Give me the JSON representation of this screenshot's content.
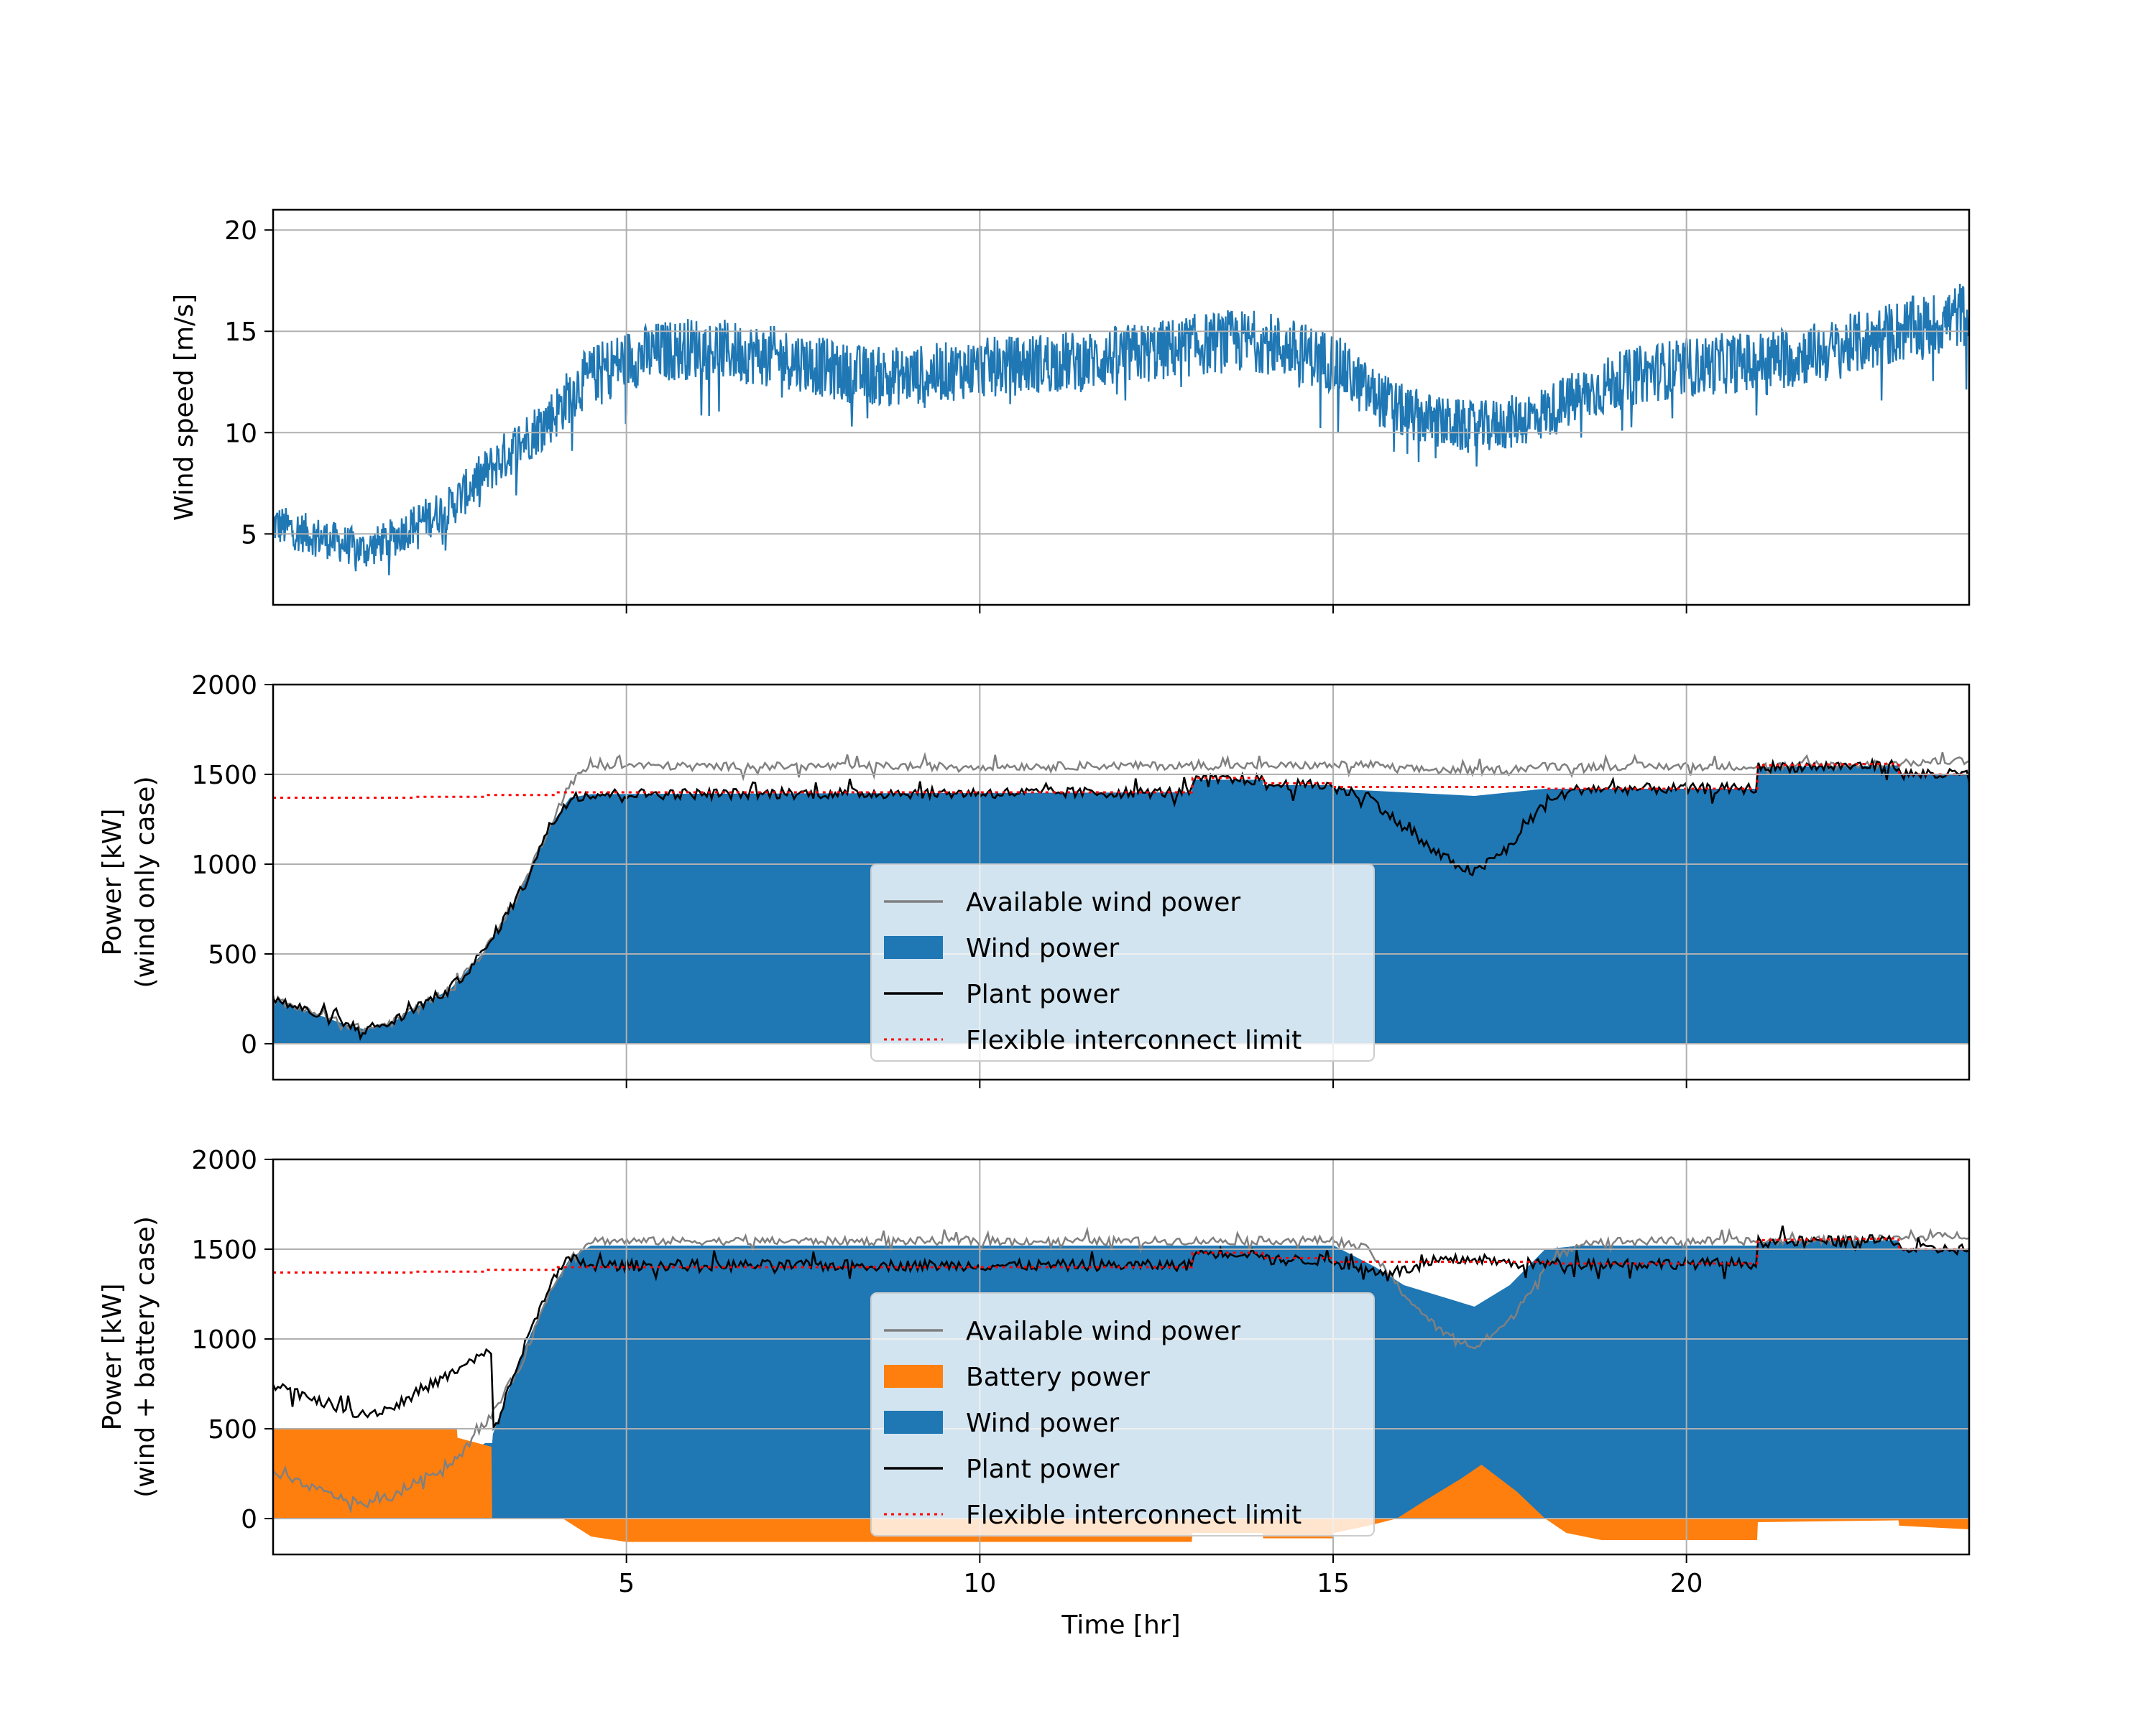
{
  "chart_data": [
    {
      "type": "line",
      "ylabel": "Wind speed [m/s]",
      "xlim": [
        0,
        24
      ],
      "ylim": [
        1.5,
        21
      ],
      "yticks": [
        5,
        10,
        15,
        20
      ],
      "xticks": [
        5,
        10,
        15,
        20
      ],
      "grid": true,
      "series": [
        {
          "role": "wind",
          "color": "#1f77b4",
          "x": [
            0,
            0.5,
            1,
            1.3,
            1.7,
            2,
            2.5,
            3,
            3.5,
            4,
            4.3,
            4.6,
            5,
            5.5,
            6,
            6.5,
            7,
            7.5,
            8,
            8.5,
            9,
            9.5,
            10,
            10.5,
            11,
            11.5,
            12,
            12.5,
            13,
            13.5,
            14,
            14.5,
            15,
            15.5,
            16,
            16.5,
            17,
            17.5,
            18,
            18.5,
            19,
            19.5,
            20,
            20.5,
            21,
            21.5,
            22,
            22.5,
            23,
            23.5,
            24
          ],
          "y": [
            5.5,
            5.0,
            4.5,
            4.2,
            4.8,
            5.5,
            6.3,
            8.0,
            9.5,
            11.0,
            12.3,
            13.0,
            13.6,
            14.0,
            14.2,
            14.0,
            13.8,
            13.5,
            13.0,
            12.8,
            12.8,
            13.0,
            13.2,
            13.3,
            13.5,
            13.5,
            13.8,
            14.0,
            14.3,
            14.5,
            14.5,
            14.0,
            13.5,
            12.0,
            11.0,
            10.5,
            10.2,
            10.5,
            11.0,
            11.8,
            12.5,
            13.0,
            13.2,
            13.4,
            13.5,
            13.8,
            14.0,
            14.5,
            15.0,
            15.3,
            16.0
          ]
        }
      ]
    },
    {
      "type": "area",
      "ylabel_lines": [
        "Power [kW]",
        "(wind only case)"
      ],
      "xlim": [
        0,
        24
      ],
      "ylim": [
        -200,
        2000
      ],
      "yticks": [
        0,
        500,
        1000,
        1500,
        2000
      ],
      "xticks": [
        5,
        10,
        15,
        20
      ],
      "grid": true,
      "legend": {
        "placement": "lower-center",
        "entries": [
          {
            "label": "Available wind power",
            "kind": "line",
            "color": "#808080"
          },
          {
            "label": "Wind power",
            "kind": "patch",
            "color": "#1f77b4"
          },
          {
            "label": "Plant power",
            "kind": "line",
            "color": "#000000"
          },
          {
            "label": "Flexible interconnect limit",
            "kind": "dotted",
            "color": "#ff0000"
          }
        ]
      },
      "series": [
        {
          "name": "Available wind power",
          "color": "#808080",
          "x": [
            0,
            0.5,
            1,
            1.3,
            1.7,
            2,
            2.5,
            3,
            3.5,
            3.9,
            4.2,
            4.5,
            5,
            6,
            8,
            10,
            12,
            14,
            15,
            15.5,
            16,
            17,
            17.5,
            18,
            19,
            20,
            21,
            22,
            23,
            24
          ],
          "y": [
            250,
            180,
            110,
            80,
            120,
            200,
            300,
            520,
            850,
            1200,
            1450,
            1550,
            1550,
            1545,
            1545,
            1545,
            1548,
            1548,
            1550,
            1555,
            1530,
            1520,
            1530,
            1545,
            1545,
            1545,
            1545,
            1550,
            1560,
            1580
          ]
        },
        {
          "name": "Wind power",
          "color": "#1f77b4",
          "x": [
            0,
            0.5,
            1,
            1.3,
            1.7,
            2,
            2.5,
            3,
            3.5,
            3.9,
            4.2,
            4.5,
            13,
            13.01,
            14,
            14.01,
            15,
            15.01,
            16,
            17,
            17.5,
            18,
            18.5,
            21,
            21.01,
            23,
            23.01,
            24
          ],
          "y": [
            250,
            180,
            110,
            80,
            120,
            200,
            300,
            520,
            850,
            1200,
            1370,
            1390,
            1400,
            1470,
            1470,
            1440,
            1440,
            1420,
            1400,
            1380,
            1400,
            1420,
            1420,
            1420,
            1540,
            1550,
            1500,
            1500
          ]
        },
        {
          "name": "Plant power",
          "color": "#000000",
          "x": [
            0,
            0.5,
            1,
            1.3,
            1.7,
            2,
            2.5,
            3,
            3.5,
            3.9,
            4.2,
            4.5,
            13,
            13.01,
            14,
            14.01,
            15,
            15.01,
            15.5,
            16,
            16.5,
            17,
            17.5,
            18,
            18.5,
            21,
            21.01,
            23,
            23.01,
            24
          ],
          "y": [
            250,
            180,
            110,
            80,
            120,
            200,
            300,
            520,
            850,
            1200,
            1370,
            1390,
            1400,
            1470,
            1470,
            1440,
            1440,
            1420,
            1380,
            1200,
            1050,
            950,
            1100,
            1350,
            1420,
            1420,
            1540,
            1550,
            1500,
            1500
          ]
        },
        {
          "name": "Flexible interconnect limit",
          "color": "#ff0000",
          "x": [
            0,
            2,
            2.01,
            3,
            3.01,
            4,
            4.01,
            13,
            13.01,
            14,
            14.01,
            15,
            15.01,
            18,
            18.01,
            21,
            21.01,
            23,
            23.01,
            24
          ],
          "y": [
            1370,
            1370,
            1375,
            1375,
            1385,
            1385,
            1400,
            1400,
            1480,
            1480,
            1450,
            1450,
            1430,
            1430,
            1420,
            1420,
            1550,
            1560,
            1500,
            1500
          ]
        }
      ]
    },
    {
      "type": "area",
      "xlabel": "Time [hr]",
      "ylabel_lines": [
        "Power [kW]",
        "(wind + battery case)"
      ],
      "xlim": [
        0,
        24
      ],
      "ylim": [
        -200,
        2000
      ],
      "yticks": [
        0,
        500,
        1000,
        1500,
        2000
      ],
      "xticks": [
        5,
        10,
        15,
        20
      ],
      "grid": true,
      "legend": {
        "placement": "lower-center",
        "entries": [
          {
            "label": "Available wind power",
            "kind": "line",
            "color": "#808080"
          },
          {
            "label": "Battery power",
            "kind": "patch",
            "color": "#ff7f0e"
          },
          {
            "label": "Wind power",
            "kind": "patch",
            "color": "#1f77b4"
          },
          {
            "label": "Plant power",
            "kind": "line",
            "color": "#000000"
          },
          {
            "label": "Flexible interconnect limit",
            "kind": "dotted",
            "color": "#ff0000"
          }
        ]
      },
      "series": [
        {
          "name": "Battery power",
          "color": "#ff7f0e",
          "x": [
            0,
            0.01,
            2.6,
            2.61,
            3.09,
            3.1,
            4.1,
            4.5,
            5,
            10,
            13,
            13.01,
            14,
            14.01,
            15,
            15.01,
            15.5,
            15.9,
            16.3,
            16.8,
            17.1,
            17.6,
            18,
            18.3,
            18.8,
            20,
            21,
            21.01,
            23,
            23.01,
            24
          ],
          "y": [
            0,
            500,
            500,
            450,
            400,
            0,
            0,
            -100,
            -130,
            -130,
            -130,
            -80,
            -80,
            -110,
            -110,
            -80,
            -40,
            0,
            100,
            220,
            300,
            150,
            0,
            -80,
            -120,
            -120,
            -120,
            -20,
            -10,
            -40,
            -60
          ]
        },
        {
          "name": "Wind power",
          "color": "#1f77b4",
          "x": [
            0,
            0.5,
            1,
            1.3,
            1.7,
            2,
            2.5,
            3,
            3.1,
            3.11,
            3.5,
            3.9,
            4.2,
            4.5,
            13,
            13.01,
            14,
            14.01,
            15,
            15.01,
            15.6,
            16,
            17,
            17.5,
            18,
            18.5,
            21,
            21.01,
            23,
            23.01,
            24
          ],
          "y": [
            250,
            180,
            110,
            80,
            120,
            200,
            300,
            420,
            420,
            470,
            900,
            1250,
            1450,
            1520,
            1520,
            1520,
            1520,
            1520,
            1520,
            1520,
            1400,
            1300,
            1180,
            1300,
            1500,
            1520,
            1520,
            1540,
            1550,
            1500,
            1500
          ]
        },
        {
          "name": "Available wind power",
          "color": "#808080",
          "x": [
            0,
            0.5,
            1,
            1.3,
            1.7,
            2,
            2.5,
            3,
            3.5,
            3.9,
            4.2,
            4.5,
            5,
            8,
            10,
            12,
            14,
            15,
            15.5,
            16,
            16.5,
            17,
            17.5,
            18,
            18.5,
            19,
            20,
            21,
            22,
            23,
            24
          ],
          "y": [
            250,
            180,
            110,
            80,
            120,
            200,
            300,
            520,
            850,
            1250,
            1450,
            1550,
            1545,
            1545,
            1545,
            1545,
            1548,
            1550,
            1500,
            1250,
            1050,
            950,
            1100,
            1400,
            1540,
            1545,
            1545,
            1545,
            1550,
            1560,
            1580
          ]
        },
        {
          "name": "Plant power",
          "color": "#000000",
          "x": [
            0,
            0.5,
            1,
            1.3,
            1.7,
            2,
            2.5,
            3,
            3.1,
            3.11,
            3.5,
            3.9,
            4.2,
            4.5,
            13,
            13.01,
            14,
            14.01,
            15,
            15.01,
            15.5,
            16,
            16.5,
            17,
            17.5,
            18,
            18.5,
            21,
            21.01,
            23,
            23.01,
            24
          ],
          "y": [
            750,
            680,
            610,
            580,
            620,
            700,
            800,
            920,
            920,
            470,
            900,
            1300,
            1450,
            1410,
            1410,
            1480,
            1480,
            1440,
            1440,
            1430,
            1380,
            1380,
            1430,
            1450,
            1420,
            1420,
            1420,
            1420,
            1540,
            1550,
            1500,
            1500
          ]
        },
        {
          "name": "Flexible interconnect limit",
          "color": "#ff0000",
          "x": [
            0,
            2,
            2.01,
            3,
            3.01,
            4,
            4.01,
            13,
            13.01,
            14,
            14.01,
            15,
            15.01,
            18,
            18.01,
            21,
            21.01,
            23,
            23.01,
            24
          ],
          "y": [
            1370,
            1370,
            1375,
            1375,
            1385,
            1385,
            1400,
            1400,
            1480,
            1480,
            1450,
            1450,
            1430,
            1430,
            1420,
            1420,
            1550,
            1560,
            1500,
            1500
          ]
        }
      ]
    }
  ]
}
